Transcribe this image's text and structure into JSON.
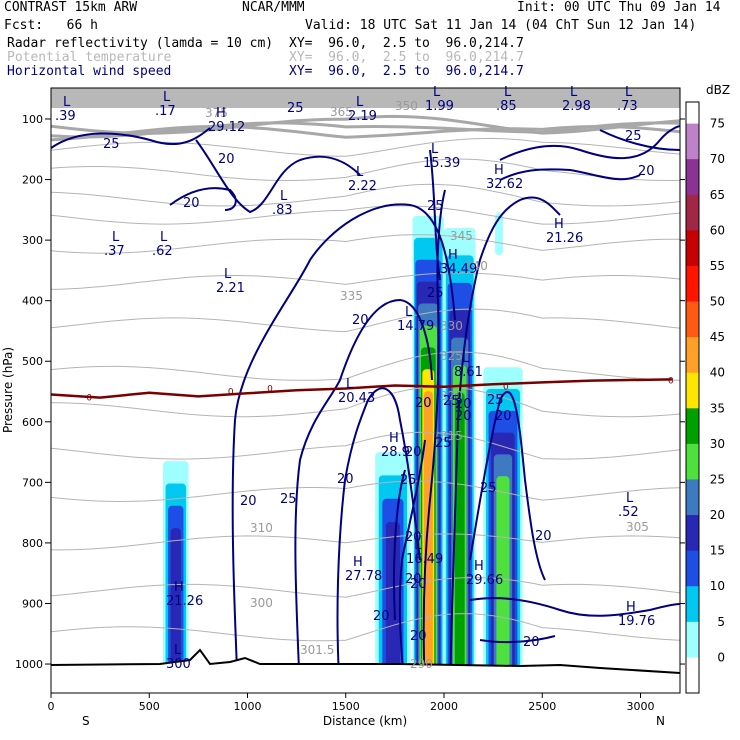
{
  "header": {
    "model": "CONTRAST 15km ARW",
    "org": "NCAR/MMM",
    "init": "Init: 00 UTC Thu 09 Jan 14",
    "fcst": "Fcst:   66 h",
    "valid": "Valid: 18 UTC Sat 11 Jan 14 (04 ChT Sun 12 Jan 14)",
    "lines": [
      {
        "name": "Radar reflectivity (lamda = 10 cm)",
        "xy": "XY=  96.0,  2.5 to  96.0,214.7"
      },
      {
        "name": "Potential temperature",
        "xy": "XY=  96.0,  2.5 to  96.0,214.7"
      },
      {
        "name": "Horizontal wind speed",
        "xy": "XY=  96.0,  2.5 to  96.0,214.7"
      }
    ]
  },
  "chart_data": {
    "type": "contour cross-section",
    "xlabel": "Distance (km)",
    "ylabel": "Pressure (hPa)",
    "xlim": [
      0,
      3200
    ],
    "ylim": [
      1050,
      80
    ],
    "x_ticks": [
      0,
      500,
      1000,
      1500,
      2000,
      2500,
      3000
    ],
    "y_ticks": [
      100,
      200,
      300,
      400,
      500,
      600,
      700,
      800,
      900,
      1000
    ],
    "x_end_labels": {
      "left": "S",
      "right": "N"
    },
    "colorbar": {
      "unit": "dBZ",
      "levels": [
        0,
        5,
        10,
        15,
        20,
        25,
        30,
        35,
        40,
        45,
        50,
        55,
        60,
        65,
        70,
        75
      ],
      "colors": [
        "#ffffff",
        "#9ffffe",
        "#00c8f0",
        "#1e4ee6",
        "#2828b4",
        "#3e7ac0",
        "#4ee03c",
        "#00a000",
        "#ffe600",
        "#ffa028",
        "#ff5a14",
        "#ff1400",
        "#c80000",
        "#a02846",
        "#8c3296",
        "#be82c8"
      ]
    },
    "reflectivity_cells": [
      {
        "x": [
          570,
          700
        ],
        "p": [
          665,
          1000
        ],
        "core_dbz": 20
      },
      {
        "x": [
          1650,
          1830
        ],
        "p": [
          650,
          1000
        ],
        "core_dbz": 20
      },
      {
        "x": [
          1840,
          2000
        ],
        "p": [
          260,
          1000
        ],
        "core_dbz": 45
      },
      {
        "x": [
          2000,
          2160
        ],
        "p": [
          280,
          1000
        ],
        "core_dbz": 35
      },
      {
        "x": [
          2200,
          2400
        ],
        "p": [
          510,
          1000
        ],
        "core_dbz": 30
      },
      {
        "x": [
          2260,
          2300
        ],
        "p": [
          255,
          315
        ],
        "core_dbz": 5
      }
    ],
    "freezing_level_label": "0",
    "freezing_level_p": [
      555,
      560,
      552,
      558,
      553,
      548,
      545,
      540,
      542,
      538,
      535,
      532,
      530
    ],
    "freezing_level_x": [
      0,
      250,
      500,
      750,
      1000,
      1250,
      1500,
      1750,
      2000,
      2250,
      2500,
      2750,
      3160
    ],
    "theta_labels": [
      "375",
      "365",
      "350",
      "345",
      "340",
      "335",
      "330",
      "325",
      "320",
      "315",
      "310",
      "305",
      "300",
      "301.5",
      "290"
    ],
    "wind_labels": [
      "25",
      "20",
      "25",
      "20",
      "25",
      "20",
      "25",
      "20",
      "25",
      "20",
      "25",
      "20",
      "25",
      "20",
      "25",
      "20",
      "25",
      "20",
      "25",
      "20",
      "20",
      "20",
      "20",
      "25",
      "20",
      "20",
      "20",
      "20",
      "20"
    ],
    "hl_labels": [
      {
        "mark": "L",
        "value": ".39"
      },
      {
        "mark": "L",
        "value": ".17"
      },
      {
        "mark": "H",
        "value": "29.12"
      },
      {
        "mark": "L",
        "value": "2.19"
      },
      {
        "mark": "L",
        "value": "1.99"
      },
      {
        "mark": "L",
        "value": ".85"
      },
      {
        "mark": "L",
        "value": "2.98"
      },
      {
        "mark": "L",
        "value": ".73"
      },
      {
        "mark": "L",
        "value": "15.39"
      },
      {
        "mark": "H",
        "value": "32.62"
      },
      {
        "mark": "L",
        "value": "2.22"
      },
      {
        "mark": "L",
        "value": ".83"
      },
      {
        "mark": "H",
        "value": "21.26"
      },
      {
        "mark": "L",
        "value": ".37"
      },
      {
        "mark": "L",
        "value": ".62"
      },
      {
        "mark": "H",
        "value": "34.49"
      },
      {
        "mark": "L",
        "value": "2.21"
      },
      {
        "mark": "L",
        "value": "14.79"
      },
      {
        "mark": "L",
        "value": "8.61"
      },
      {
        "mark": "L",
        "value": "20.43"
      },
      {
        "mark": "H",
        "value": "28.9"
      },
      {
        "mark": "L",
        "value": ".52"
      },
      {
        "mark": "L",
        "value": "16.49"
      },
      {
        "mark": "H",
        "value": "27.78"
      },
      {
        "mark": "H",
        "value": "29.66"
      },
      {
        "mark": "H",
        "value": "21.26"
      },
      {
        "mark": "H",
        "value": "19.76"
      },
      {
        "mark": "L",
        "value": "300"
      }
    ]
  }
}
